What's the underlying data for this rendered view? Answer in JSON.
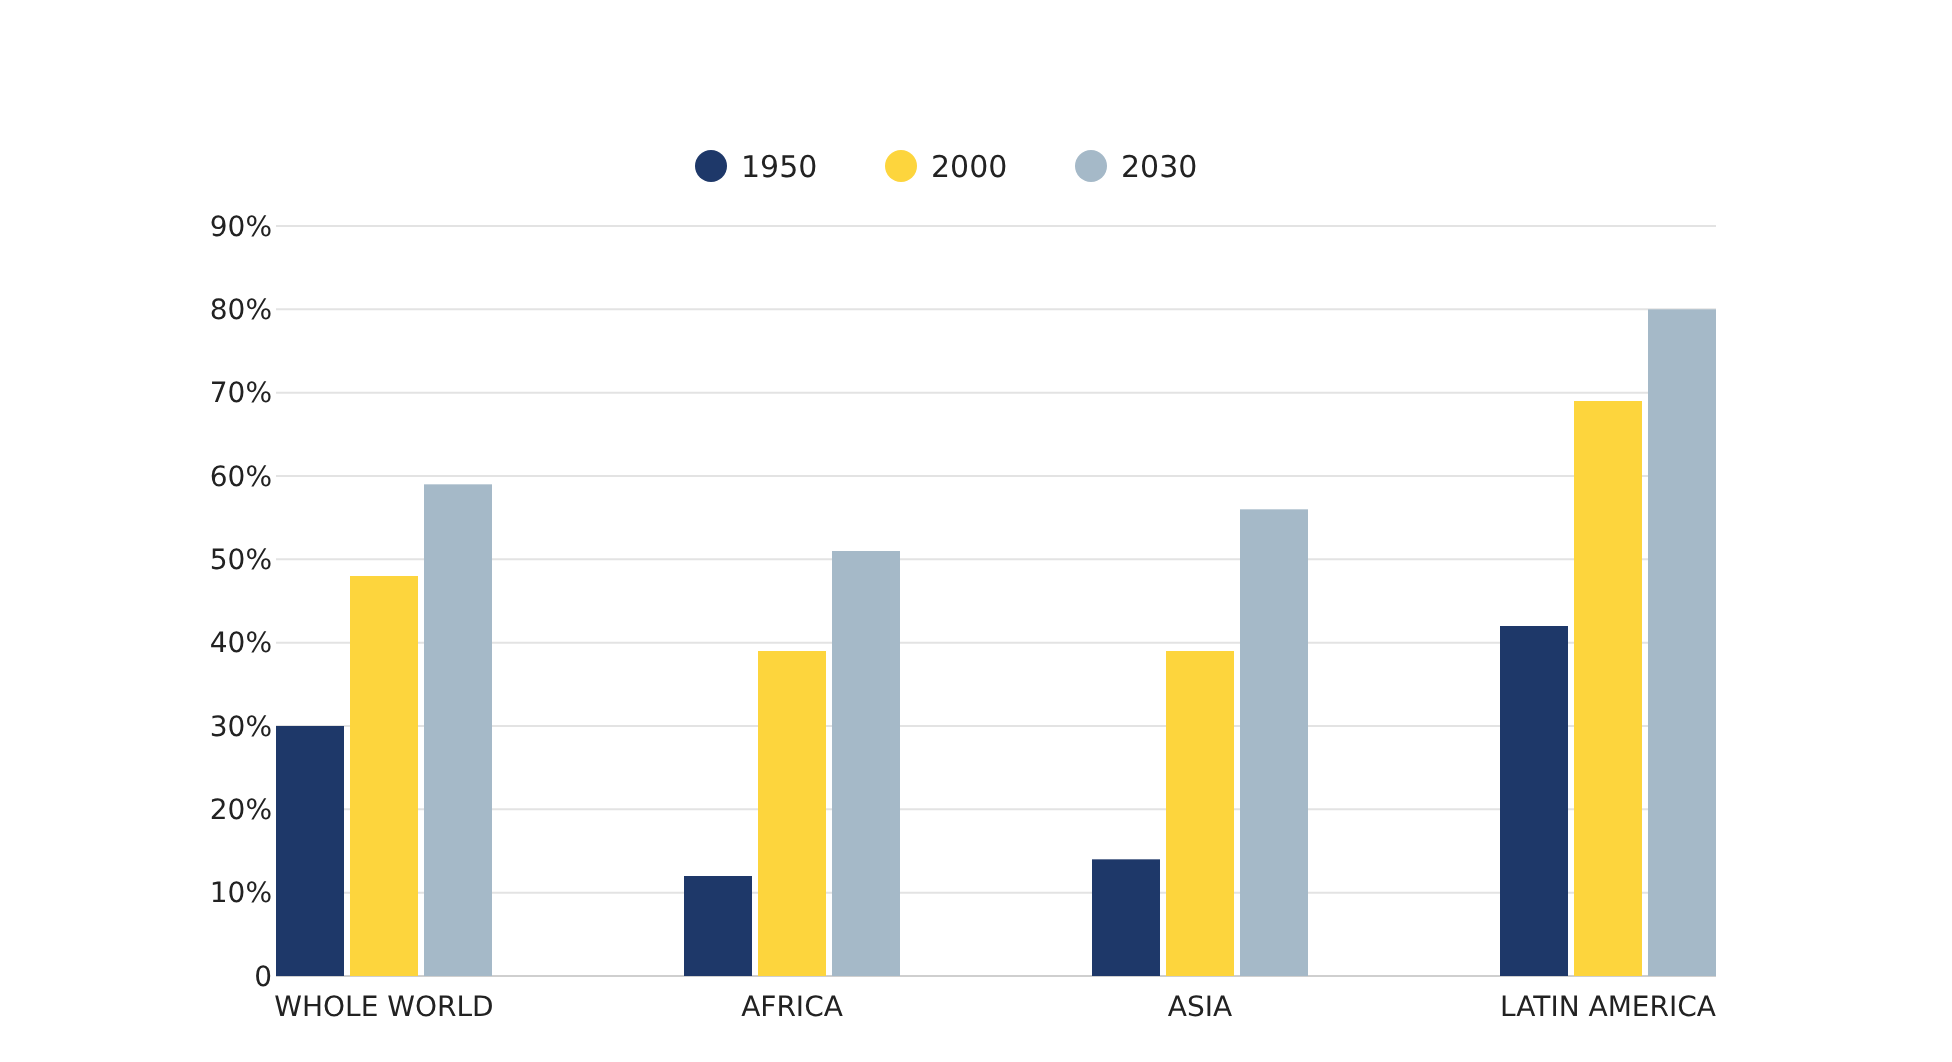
{
  "chart_data": {
    "type": "bar",
    "categories": [
      "WHOLE WORLD",
      "AFRICA",
      "ASIA",
      "LATIN AMERICA"
    ],
    "series": [
      {
        "name": "1950",
        "color": "#1e3869",
        "values": [
          30,
          12,
          14,
          42
        ]
      },
      {
        "name": "2000",
        "color": "#fdd53d",
        "values": [
          48,
          39,
          39,
          69
        ]
      },
      {
        "name": "2030",
        "color": "#a5b9c8",
        "values": [
          59,
          51,
          56,
          80
        ]
      }
    ],
    "ylim": [
      0,
      90
    ],
    "yticks": [
      {
        "value": 0,
        "label": "0"
      },
      {
        "value": 10,
        "label": "10%"
      },
      {
        "value": 20,
        "label": "20%"
      },
      {
        "value": 30,
        "label": "30%"
      },
      {
        "value": 40,
        "label": "40%"
      },
      {
        "value": 50,
        "label": "50%"
      },
      {
        "value": 60,
        "label": "60%"
      },
      {
        "value": 70,
        "label": "70%"
      },
      {
        "value": 80,
        "label": "80%"
      },
      {
        "value": 90,
        "label": "90%"
      }
    ],
    "grid": "y",
    "legend": "top"
  }
}
